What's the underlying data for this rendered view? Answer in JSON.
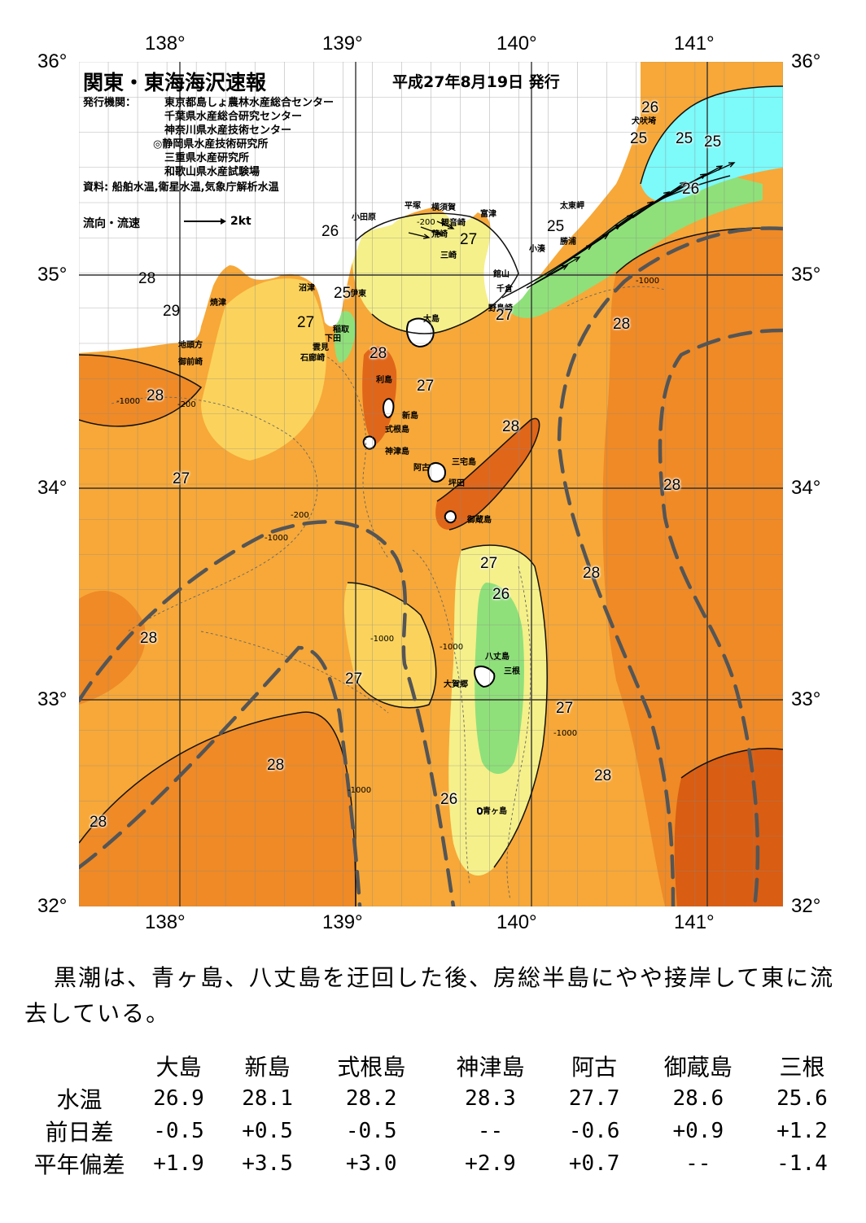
{
  "title": "関東・東海海沢速報",
  "issue_date": "平成27年8月19日 発行",
  "publisher_label": "発行機関：",
  "publishers": [
    "東京都島しょ農林水産総合センター",
    "千葉県水産総合研究センター",
    "神奈川県水産技術センター",
    "◎静岡県水産技術研究所",
    "三重県水産研究所",
    "和歌山県水産試験場"
  ],
  "source": "資料: 船舶水温,衛星水温,気象庁解析水温",
  "legend": {
    "label": "流向・流速",
    "unit": "2kt"
  },
  "axes": {
    "lon_labels": [
      "138°",
      "139°",
      "140°",
      "141°"
    ],
    "lat_labels": [
      "36°",
      "35°",
      "34°",
      "33°",
      "32°"
    ],
    "lon_range": [
      137.5,
      141.5
    ],
    "lat_range": [
      32,
      36
    ]
  },
  "place_names": [
    "犬吠埼",
    "太東岬",
    "勝浦",
    "小湊",
    "館山",
    "千倉",
    "野島崎",
    "富津",
    "横須賀",
    "観音崎",
    "平塚",
    "荒崎",
    "三崎",
    "小田原",
    "沼津",
    "伊東",
    "稲取",
    "下田",
    "雲見",
    "石廊崎",
    "焼津",
    "地頭方",
    "御前崎",
    "大島",
    "利島",
    "新島",
    "式根島",
    "神津島",
    "三宅島",
    "阿古",
    "坪田",
    "御蔵島",
    "八丈島",
    "三根",
    "大賀郷",
    "青ヶ島"
  ],
  "isotherm_labels": [
    "26",
    "25",
    "25",
    "25",
    "26",
    "25",
    "26",
    "27",
    "28",
    "29",
    "25",
    "27",
    "28",
    "27",
    "28",
    "28",
    "27",
    "28",
    "28",
    "28",
    "27",
    "26",
    "27",
    "28",
    "27",
    "28",
    "27",
    "28",
    "26",
    "28"
  ],
  "depth_labels": [
    "-200",
    "-1000"
  ],
  "summary": "黒潮は、青ヶ島、八丈島を迂回した後、房総半島にやや接岸して東に流去している。",
  "table": {
    "columns": [
      "大島",
      "新島",
      "式根島",
      "神津島",
      "阿古",
      "御蔵島",
      "三根"
    ],
    "rows": [
      {
        "label": "水温",
        "values": [
          "26.9",
          "28.1",
          "28.2",
          "28.3",
          "27.7",
          "28.6",
          "25.6"
        ]
      },
      {
        "label": "前日差",
        "values": [
          "-0.5",
          "+0.5",
          "-0.5",
          "--",
          "-0.6",
          "+0.9",
          "+1.2"
        ]
      },
      {
        "label": "平年偏差",
        "values": [
          "+1.9",
          "+3.5",
          "+3.0",
          "+2.9",
          "+0.7",
          "--",
          "-1.4"
        ]
      }
    ]
  },
  "colors": {
    "land": "#ffffff",
    "t25": "#7dfafa",
    "t26": "#8fe07a",
    "t27": "#f5f08a",
    "t27b": "#fbd35c",
    "t28": "#f7a838",
    "t28b": "#ef8a26",
    "t29": "#e0661a",
    "kuroshio": "#555555"
  }
}
